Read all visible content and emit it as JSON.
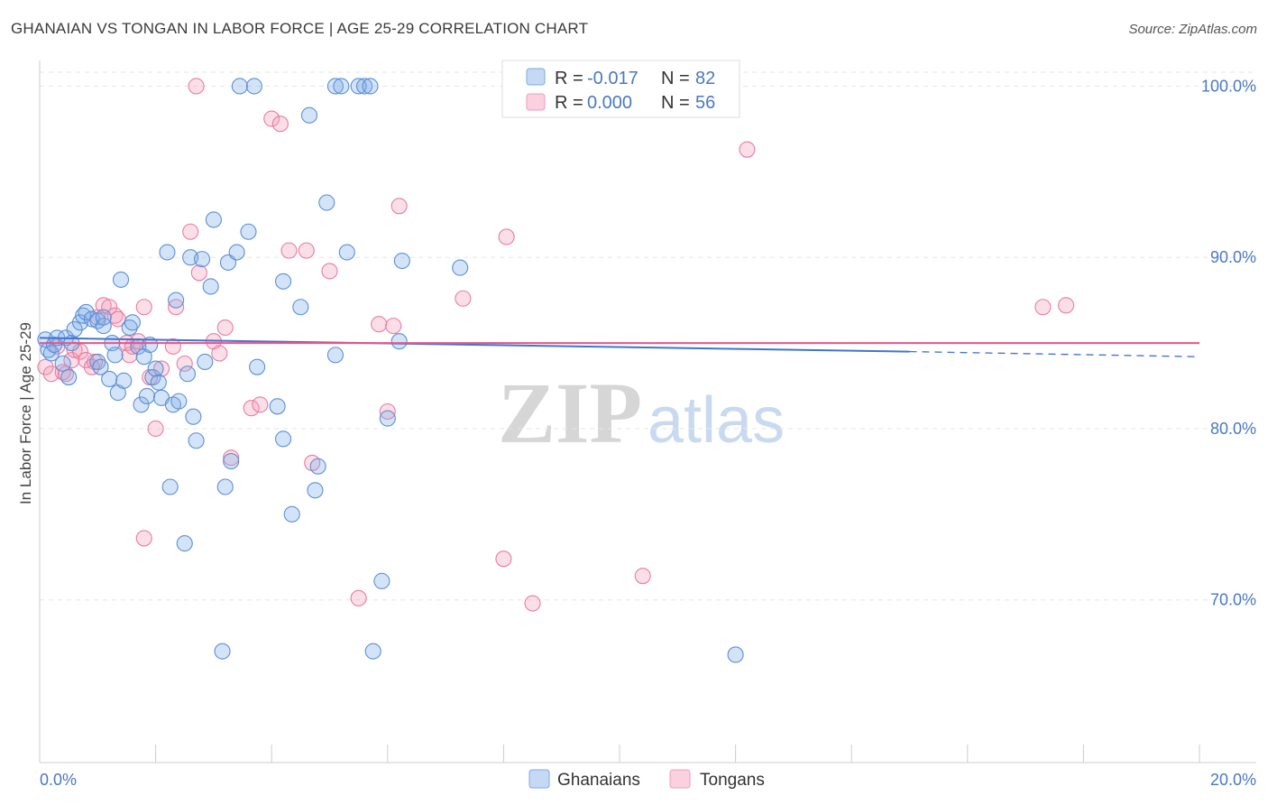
{
  "header": {
    "title": "GHANAIAN VS TONGAN IN LABOR FORCE | AGE 25-29 CORRELATION CHART",
    "source": "Source: ZipAtlas.com"
  },
  "watermark": {
    "zip": "ZIP",
    "atlas": "atlas"
  },
  "legend": {
    "rows": [
      {
        "r_label": "R =",
        "r_value": "-0.017",
        "n_label": "N =",
        "n_value": "82",
        "color": "#7aaae8"
      },
      {
        "r_label": "R =",
        "r_value": "0.000",
        "n_label": "N =",
        "n_value": "56",
        "color": "#f29bb8"
      }
    ]
  },
  "chart_data": {
    "type": "scatter",
    "title": "GHANAIAN VS TONGAN IN LABOR FORCE | AGE 25-29 CORRELATION CHART",
    "xlabel": "",
    "ylabel": "In Labor Force | Age 25-29",
    "xlim": [
      0,
      20
    ],
    "ylim": [
      60.5,
      101.5
    ],
    "x_tick_labels": [
      "0.0%",
      "20.0%"
    ],
    "y_ticks": [
      70,
      80,
      90,
      100
    ],
    "y_tick_labels": [
      "70.0%",
      "80.0%",
      "90.0%",
      "100.0%"
    ],
    "grid": true,
    "series": [
      {
        "name": "Ghanaians",
        "color": "#7aaae8",
        "stroke": "#5b8fd6",
        "r": -0.017,
        "n": 82,
        "trend": {
          "x": [
            0,
            15
          ],
          "y": [
            85.3,
            84.5
          ],
          "dashed_to": [
            20,
            84.2
          ]
        },
        "points": [
          [
            0.1,
            85.2
          ],
          [
            0.15,
            84.6
          ],
          [
            0.2,
            84.4
          ],
          [
            0.25,
            84.9
          ],
          [
            0.3,
            85.3
          ],
          [
            0.4,
            83.8
          ],
          [
            0.45,
            85.3
          ],
          [
            0.5,
            83.0
          ],
          [
            0.55,
            85.0
          ],
          [
            0.6,
            85.8
          ],
          [
            0.7,
            86.2
          ],
          [
            0.75,
            86.6
          ],
          [
            0.8,
            86.8
          ],
          [
            0.9,
            86.4
          ],
          [
            1.0,
            86.3
          ],
          [
            1.0,
            83.9
          ],
          [
            1.05,
            83.6
          ],
          [
            1.1,
            86.0
          ],
          [
            1.1,
            86.5
          ],
          [
            1.2,
            82.9
          ],
          [
            1.25,
            85.0
          ],
          [
            1.3,
            84.3
          ],
          [
            1.35,
            82.1
          ],
          [
            1.4,
            88.7
          ],
          [
            1.45,
            82.8
          ],
          [
            1.55,
            85.9
          ],
          [
            1.6,
            86.2
          ],
          [
            1.7,
            84.8
          ],
          [
            1.75,
            81.4
          ],
          [
            1.8,
            84.2
          ],
          [
            1.85,
            81.9
          ],
          [
            1.9,
            84.9
          ],
          [
            1.95,
            83.0
          ],
          [
            2.0,
            83.5
          ],
          [
            2.05,
            82.7
          ],
          [
            2.1,
            81.8
          ],
          [
            2.2,
            90.3
          ],
          [
            2.25,
            76.6
          ],
          [
            2.3,
            81.4
          ],
          [
            2.35,
            87.5
          ],
          [
            2.4,
            81.6
          ],
          [
            2.5,
            73.3
          ],
          [
            2.55,
            83.2
          ],
          [
            2.6,
            90.0
          ],
          [
            2.65,
            80.7
          ],
          [
            2.7,
            79.3
          ],
          [
            2.8,
            89.9
          ],
          [
            2.85,
            83.9
          ],
          [
            2.95,
            88.3
          ],
          [
            3.0,
            92.2
          ],
          [
            3.15,
            67.0
          ],
          [
            3.2,
            76.6
          ],
          [
            3.25,
            89.7
          ],
          [
            3.3,
            78.1
          ],
          [
            3.4,
            90.3
          ],
          [
            3.45,
            100.0
          ],
          [
            3.6,
            91.5
          ],
          [
            3.7,
            100.0
          ],
          [
            3.75,
            83.6
          ],
          [
            4.1,
            81.3
          ],
          [
            4.2,
            88.6
          ],
          [
            4.2,
            79.4
          ],
          [
            4.35,
            75.0
          ],
          [
            4.5,
            87.1
          ],
          [
            4.65,
            98.3
          ],
          [
            4.75,
            76.4
          ],
          [
            4.8,
            77.8
          ],
          [
            4.95,
            93.2
          ],
          [
            5.1,
            84.3
          ],
          [
            5.1,
            100.0
          ],
          [
            5.2,
            100.0
          ],
          [
            5.3,
            90.3
          ],
          [
            5.5,
            100.0
          ],
          [
            5.6,
            100.0
          ],
          [
            5.7,
            100.0
          ],
          [
            5.75,
            67.0
          ],
          [
            5.9,
            71.1
          ],
          [
            6.0,
            80.6
          ],
          [
            6.2,
            85.1
          ],
          [
            6.25,
            89.8
          ],
          [
            7.25,
            89.4
          ],
          [
            12.0,
            66.8
          ]
        ]
      },
      {
        "name": "Tongans",
        "color": "#f29bb8",
        "stroke": "#ea7ca1",
        "r": 0.0,
        "n": 56,
        "trend": {
          "x": [
            0,
            20
          ],
          "y": [
            85.0,
            85.0
          ]
        },
        "points": [
          [
            0.1,
            83.6
          ],
          [
            0.2,
            83.2
          ],
          [
            0.3,
            84.8
          ],
          [
            0.4,
            83.3
          ],
          [
            0.45,
            83.2
          ],
          [
            0.55,
            84.0
          ],
          [
            0.6,
            84.6
          ],
          [
            0.7,
            84.5
          ],
          [
            0.8,
            84.0
          ],
          [
            0.9,
            83.6
          ],
          [
            0.95,
            83.9
          ],
          [
            1.0,
            86.5
          ],
          [
            1.1,
            87.2
          ],
          [
            1.2,
            87.1
          ],
          [
            1.3,
            86.6
          ],
          [
            1.35,
            86.4
          ],
          [
            1.5,
            85.0
          ],
          [
            1.55,
            84.3
          ],
          [
            1.6,
            84.8
          ],
          [
            1.7,
            85.1
          ],
          [
            1.8,
            87.1
          ],
          [
            1.8,
            73.6
          ],
          [
            1.9,
            83.0
          ],
          [
            2.0,
            80.0
          ],
          [
            2.1,
            83.5
          ],
          [
            2.3,
            84.8
          ],
          [
            2.35,
            87.1
          ],
          [
            2.5,
            83.8
          ],
          [
            2.6,
            91.5
          ],
          [
            2.7,
            100.0
          ],
          [
            2.75,
            89.1
          ],
          [
            3.0,
            85.1
          ],
          [
            3.1,
            84.4
          ],
          [
            3.2,
            85.9
          ],
          [
            3.3,
            78.3
          ],
          [
            3.65,
            81.2
          ],
          [
            3.8,
            81.4
          ],
          [
            4.0,
            98.1
          ],
          [
            4.15,
            97.8
          ],
          [
            4.3,
            90.4
          ],
          [
            4.6,
            90.4
          ],
          [
            4.7,
            78.0
          ],
          [
            5.0,
            89.2
          ],
          [
            5.5,
            70.1
          ],
          [
            5.85,
            86.1
          ],
          [
            6.0,
            81.0
          ],
          [
            6.1,
            86.0
          ],
          [
            6.2,
            93.0
          ],
          [
            7.3,
            87.6
          ],
          [
            8.0,
            72.4
          ],
          [
            8.05,
            91.2
          ],
          [
            8.5,
            69.8
          ],
          [
            10.4,
            71.4
          ],
          [
            12.2,
            96.3
          ],
          [
            17.3,
            87.1
          ],
          [
            17.7,
            87.2
          ]
        ]
      }
    ]
  }
}
